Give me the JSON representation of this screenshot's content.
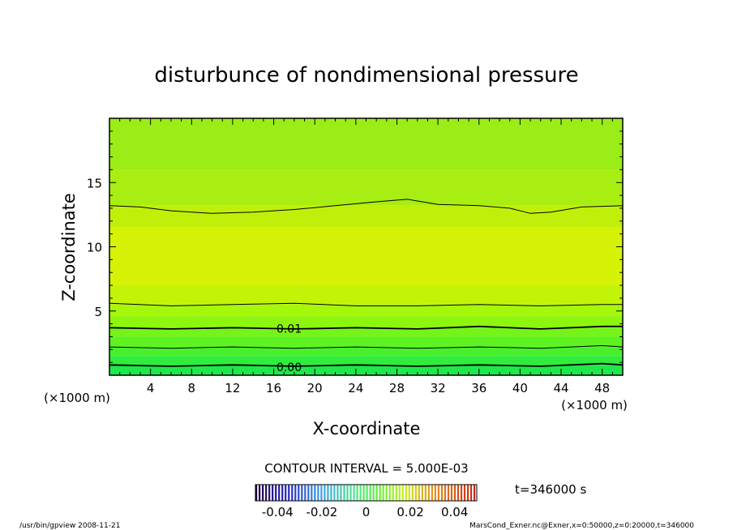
{
  "chart_data": {
    "type": "heatmap",
    "title": "disturbunce of nondimensional pressure",
    "xlabel": "X-coordinate",
    "ylabel": "Z-coordinate",
    "x_unit_left": "(×1000 m)",
    "x_unit_right": "(×1000 m)",
    "xlim": [
      0,
      50
    ],
    "ylim": [
      0,
      20
    ],
    "xticks": [
      4,
      8,
      12,
      16,
      20,
      24,
      28,
      32,
      36,
      40,
      44,
      48
    ],
    "yticks": [
      5,
      10,
      15
    ],
    "contour_interval_text": "CONTOUR INTERVAL = 5.000E-03",
    "contour_labels": [
      {
        "text": "0.01",
        "x": 17.5,
        "z": 3.7
      },
      {
        "text": "0.00",
        "x": 17.5,
        "z": 0.7
      }
    ],
    "contours": [
      {
        "level": 0.0,
        "points": [
          [
            0,
            0.8
          ],
          [
            6,
            0.7
          ],
          [
            12,
            0.8
          ],
          [
            18,
            0.7
          ],
          [
            24,
            0.8
          ],
          [
            30,
            0.7
          ],
          [
            36,
            0.8
          ],
          [
            42,
            0.7
          ],
          [
            48,
            0.9
          ],
          [
            50,
            0.8
          ]
        ]
      },
      {
        "level": 0.005,
        "points": [
          [
            0,
            2.2
          ],
          [
            6,
            2.1
          ],
          [
            12,
            2.2
          ],
          [
            18,
            2.1
          ],
          [
            24,
            2.2
          ],
          [
            30,
            2.1
          ],
          [
            36,
            2.2
          ],
          [
            42,
            2.1
          ],
          [
            48,
            2.3
          ],
          [
            50,
            2.2
          ]
        ]
      },
      {
        "level": 0.01,
        "points": [
          [
            0,
            3.7
          ],
          [
            6,
            3.6
          ],
          [
            12,
            3.7
          ],
          [
            18,
            3.6
          ],
          [
            24,
            3.7
          ],
          [
            30,
            3.6
          ],
          [
            36,
            3.8
          ],
          [
            42,
            3.6
          ],
          [
            48,
            3.8
          ],
          [
            50,
            3.8
          ]
        ]
      },
      {
        "level": 0.015,
        "points": [
          [
            0,
            5.6
          ],
          [
            6,
            5.4
          ],
          [
            12,
            5.5
          ],
          [
            18,
            5.6
          ],
          [
            24,
            5.4
          ],
          [
            30,
            5.4
          ],
          [
            36,
            5.5
          ],
          [
            42,
            5.4
          ],
          [
            48,
            5.5
          ],
          [
            50,
            5.5
          ]
        ]
      },
      {
        "level": 0.015,
        "points": [
          [
            0,
            13.2
          ],
          [
            3,
            13.1
          ],
          [
            6,
            12.8
          ],
          [
            10,
            12.6
          ],
          [
            14,
            12.7
          ],
          [
            18,
            12.9
          ],
          [
            22,
            13.2
          ],
          [
            26,
            13.5
          ],
          [
            29,
            13.7
          ],
          [
            32,
            13.3
          ],
          [
            36,
            13.2
          ],
          [
            39,
            13.0
          ],
          [
            41,
            12.6
          ],
          [
            43,
            12.7
          ],
          [
            46,
            13.1
          ],
          [
            50,
            13.2
          ]
        ]
      }
    ],
    "fill_bands": [
      {
        "z0": 0.0,
        "z1": 0.8,
        "color": "#1ee84a"
      },
      {
        "z0": 0.8,
        "z1": 1.5,
        "color": "#30ec3c"
      },
      {
        "z0": 1.5,
        "z1": 2.2,
        "color": "#48f02c"
      },
      {
        "z0": 2.2,
        "z1": 3.0,
        "color": "#5ef222"
      },
      {
        "z0": 3.0,
        "z1": 3.7,
        "color": "#74f418"
      },
      {
        "z0": 3.7,
        "z1": 4.6,
        "color": "#8ef60e"
      },
      {
        "z0": 4.6,
        "z1": 5.5,
        "color": "#a6f80a"
      },
      {
        "z0": 5.5,
        "z1": 7.0,
        "color": "#c2f408"
      },
      {
        "z0": 7.0,
        "z1": 11.5,
        "color": "#d6f206"
      },
      {
        "z0": 11.5,
        "z1": 13.2,
        "color": "#c0f00a"
      },
      {
        "z0": 13.2,
        "z1": 16.0,
        "color": "#a8ee12"
      },
      {
        "z0": 16.0,
        "z1": 20.0,
        "color": "#9cec18"
      }
    ],
    "colorbar": {
      "ticks": [
        "-0.04",
        "-0.02",
        "0",
        "0.02",
        "0.04"
      ],
      "range": [
        -0.05,
        0.05
      ]
    },
    "time_text": "t=346000 s",
    "footer_left": "/usr/bin/gpview   2008-11-21",
    "footer_right": "MarsCond_Exner.nc@Exner,x=0:50000,z=0:20000,t=346000"
  }
}
